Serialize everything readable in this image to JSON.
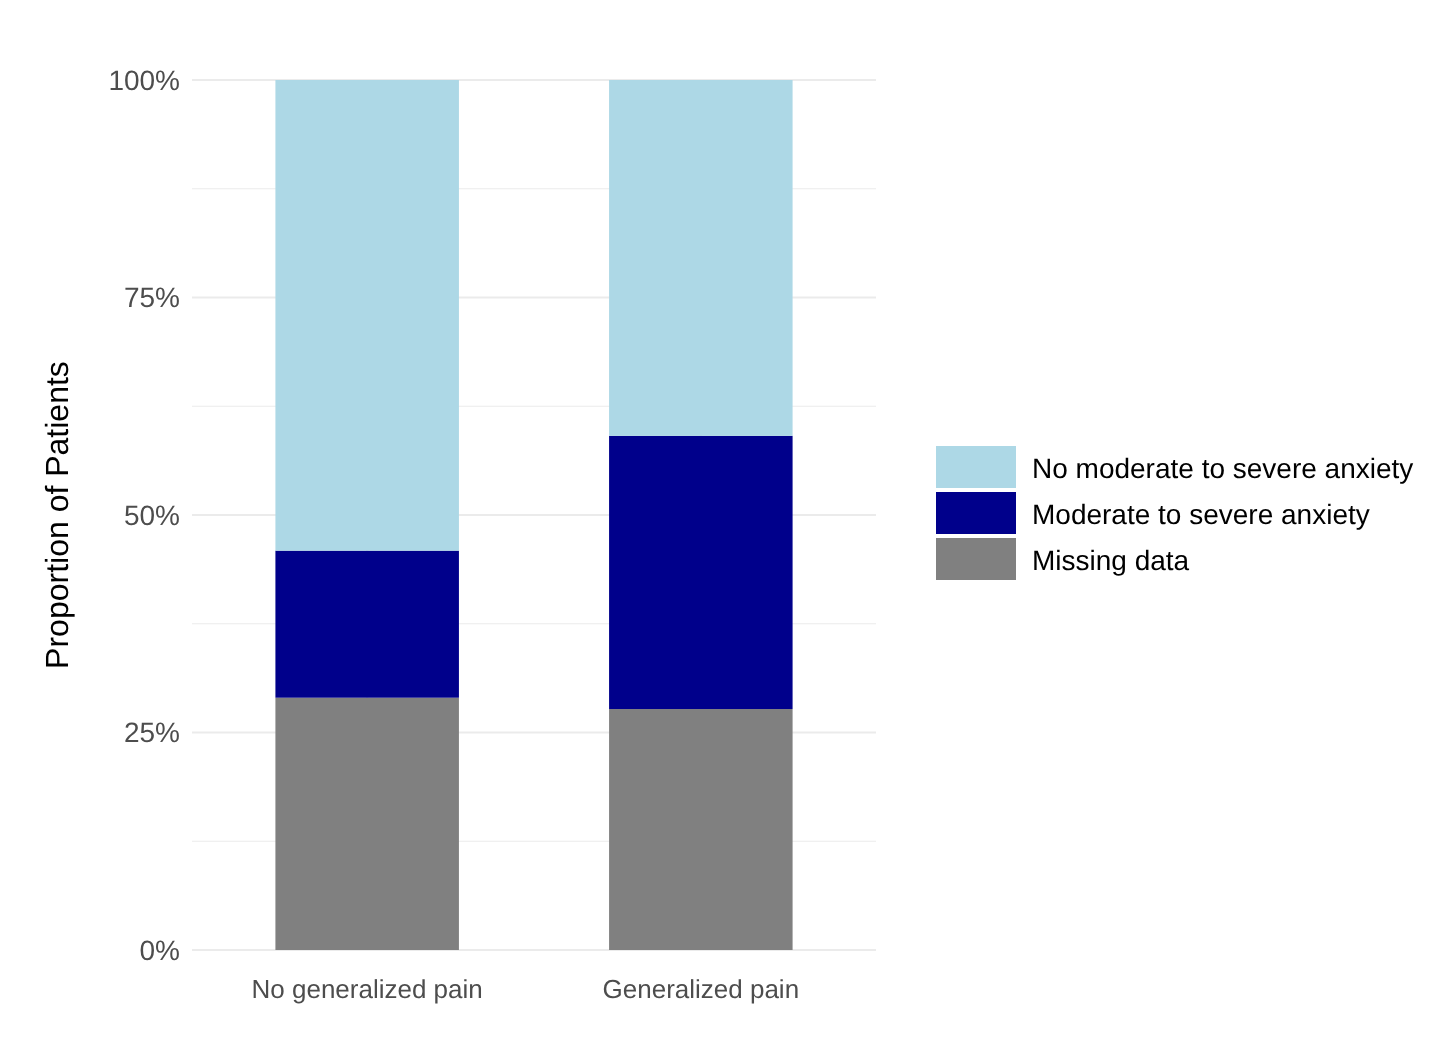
{
  "chart_data": {
    "type": "bar",
    "stacked": true,
    "ylabel": "Proportion of Patients",
    "categories": [
      "No generalized pain",
      "Generalized pain"
    ],
    "series": [
      {
        "name": "Missing data",
        "color": "#808080",
        "values": [
          29.0,
          27.7
        ]
      },
      {
        "name": "Moderate to severe anxiety",
        "color": "#00008b",
        "values": [
          16.9,
          31.4
        ]
      },
      {
        "name": "No moderate to severe anxiety",
        "color": "#add8e6",
        "values": [
          54.1,
          40.9
        ]
      }
    ],
    "ylim": [
      0,
      100
    ],
    "yticks": [
      {
        "value": 0,
        "label": "0%"
      },
      {
        "value": 12.5,
        "label": null
      },
      {
        "value": 25,
        "label": "25%"
      },
      {
        "value": 37.5,
        "label": null
      },
      {
        "value": 50,
        "label": "50%"
      },
      {
        "value": 62.5,
        "label": null
      },
      {
        "value": 75,
        "label": "75%"
      },
      {
        "value": 87.5,
        "label": null
      },
      {
        "value": 100,
        "label": "100%"
      }
    ],
    "grid": true,
    "legend": "right"
  }
}
